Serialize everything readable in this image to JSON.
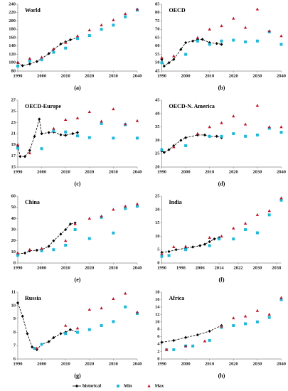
{
  "chart_data": [
    {
      "type": "line",
      "title": "World",
      "label": "(a)",
      "xlim": [
        1990,
        2040
      ],
      "xticks": [
        1990,
        2000,
        2010,
        2020,
        2030,
        2040
      ],
      "ylim": [
        80,
        240
      ],
      "yticks": [
        80,
        100,
        120,
        140,
        160,
        180,
        200,
        220,
        240
      ],
      "series": [
        {
          "color": "#000000",
          "marker": "diamond",
          "dash": true,
          "x": [
            1990,
            1992,
            1995,
            1998,
            2000,
            2003,
            2005,
            2008,
            2010,
            2012,
            2015
          ],
          "values": [
            100,
            93,
            97,
            103,
            110,
            122,
            132,
            145,
            150,
            155,
            160
          ]
        },
        {
          "color": "#1fb8d8",
          "marker": "square",
          "x": [
            1990,
            1995,
            2000,
            2005,
            2010,
            2015,
            2020,
            2025,
            2030,
            2035,
            2040
          ],
          "values": [
            92,
            104,
            107,
            125,
            135,
            158,
            165,
            180,
            190,
            210,
            226
          ]
        },
        {
          "color": "#c0142a",
          "marker": "triangle",
          "x": [
            1990,
            1995,
            2000,
            2005,
            2010,
            2015,
            2020,
            2025,
            2030,
            2035,
            2040
          ],
          "values": [
            101,
            110,
            113,
            133,
            148,
            164,
            178,
            190,
            202,
            217,
            228
          ]
        }
      ]
    },
    {
      "type": "line",
      "title": "OECD",
      "label": "(b)",
      "xlim": [
        1990,
        2040
      ],
      "xticks": [
        1990,
        2000,
        2010,
        2020,
        2030,
        2040
      ],
      "ylim": [
        45,
        85
      ],
      "yticks": [
        45,
        50,
        55,
        60,
        65,
        70,
        75,
        80,
        85
      ],
      "series": [
        {
          "color": "#000000",
          "marker": "diamond",
          "dash": true,
          "x": [
            1990,
            1991,
            1993,
            1995,
            1998,
            2000,
            2003,
            2005,
            2007,
            2010,
            2013,
            2015
          ],
          "values": [
            52,
            48,
            50,
            52,
            58,
            62,
            63,
            64,
            64,
            62,
            61.5,
            61
          ]
        },
        {
          "color": "#1fb8d8",
          "marker": "square",
          "x": [
            1990,
            2000,
            2005,
            2010,
            2015,
            2020,
            2025,
            2030,
            2035,
            2040
          ],
          "values": [
            50,
            55,
            63,
            61,
            63,
            63.5,
            62.5,
            63,
            68.5,
            61
          ]
        },
        {
          "color": "#c0142a",
          "marker": "triangle",
          "x": [
            1990,
            1995,
            2005,
            2010,
            2015,
            2020,
            2025,
            2030,
            2035,
            2040
          ],
          "values": [
            53,
            54,
            65,
            70,
            72,
            76.5,
            71,
            82,
            69,
            66
          ]
        }
      ]
    },
    {
      "type": "line",
      "title": "OECD-Europe",
      "label": "(c)",
      "xlim": [
        1990,
        2040
      ],
      "xticks": [
        1990,
        2000,
        2010,
        2020,
        2030,
        2040
      ],
      "ylim": [
        15,
        27
      ],
      "yticks": [
        15,
        17,
        19,
        21,
        23,
        25,
        27
      ],
      "series": [
        {
          "color": "#000000",
          "marker": "diamond",
          "dash": true,
          "x": [
            1990,
            1991,
            1993,
            1995,
            1997,
            1999,
            2000,
            2003,
            2005,
            2008,
            2010,
            2013,
            2015
          ],
          "values": [
            18.8,
            16.9,
            16.9,
            18,
            20.5,
            23.6,
            21,
            21.2,
            21.3,
            20.8,
            20.7,
            21,
            21.2
          ]
        },
        {
          "color": "#1fb8d8",
          "marker": "square",
          "x": [
            1990,
            2000,
            2005,
            2010,
            2015,
            2020,
            2025,
            2030,
            2035,
            2040
          ],
          "values": [
            18.4,
            18.3,
            21.5,
            21.3,
            20.6,
            20.3,
            22.8,
            20.2,
            22.6,
            20.2
          ]
        },
        {
          "color": "#c0142a",
          "marker": "triangle",
          "x": [
            1990,
            1995,
            2005,
            2010,
            2015,
            2020,
            2025,
            2030,
            2035,
            2040
          ],
          "values": [
            19,
            17.5,
            21.9,
            23.5,
            23.8,
            24.9,
            23.2,
            25.4,
            22.7,
            23.3
          ]
        }
      ]
    },
    {
      "type": "line",
      "title": "OECD-N. America",
      "label": "(d)",
      "xlim": [
        1990,
        2040
      ],
      "xticks": [
        1990,
        2000,
        2010,
        2020,
        2030,
        2040
      ],
      "ylim": [
        20,
        45
      ],
      "yticks": [
        20,
        25,
        30,
        35,
        40,
        45
      ],
      "series": [
        {
          "color": "#000000",
          "marker": "diamond",
          "dash": true,
          "x": [
            1990,
            1991,
            1993,
            1995,
            1998,
            2000,
            2005,
            2008,
            2010,
            2013,
            2015
          ],
          "values": [
            26,
            25.5,
            26.5,
            28,
            30,
            31,
            32,
            32,
            31.5,
            31.5,
            31
          ]
        },
        {
          "color": "#1fb8d8",
          "marker": "square",
          "x": [
            1990,
            2000,
            2010,
            2015,
            2020,
            2025,
            2030,
            2035,
            2040
          ],
          "values": [
            26.5,
            28,
            31.5,
            31.5,
            32.5,
            31.5,
            32,
            34.5,
            33
          ]
        },
        {
          "color": "#c0142a",
          "marker": "triangle",
          "x": [
            1995,
            2005,
            2010,
            2015,
            2020,
            2025,
            2030,
            2035,
            2040
          ],
          "values": [
            27.5,
            32.5,
            35,
            36.5,
            39,
            36,
            43,
            35,
            35
          ]
        }
      ]
    },
    {
      "type": "line",
      "title": "China",
      "label": "(e)",
      "xlim": [
        1990,
        2040
      ],
      "xticks": [
        1990,
        2000,
        2010,
        2020,
        2030,
        2040
      ],
      "ylim": [
        0,
        60
      ],
      "yticks": [
        0,
        10,
        20,
        30,
        40,
        50,
        60
      ],
      "series": [
        {
          "color": "#000000",
          "marker": "diamond",
          "dash": true,
          "x": [
            1990,
            1993,
            1995,
            1998,
            2000,
            2003,
            2005,
            2008,
            2010,
            2012,
            2014
          ],
          "values": [
            8,
            9,
            11,
            11.5,
            12,
            15,
            20,
            26,
            30,
            35,
            36
          ]
        },
        {
          "color": "#1fb8d8",
          "marker": "square",
          "x": [
            1990,
            2000,
            2005,
            2010,
            2014,
            2020,
            2025,
            2030,
            2035,
            2040
          ],
          "values": [
            7,
            11,
            12,
            16,
            30,
            22,
            41,
            27,
            49,
            51
          ]
        },
        {
          "color": "#c0142a",
          "marker": "triangle",
          "x": [
            1990,
            1995,
            2000,
            2010,
            2014,
            2020,
            2025,
            2030,
            2035,
            2040
          ],
          "values": [
            9,
            12,
            13,
            20,
            35,
            40,
            42,
            48,
            51,
            53
          ]
        }
      ]
    },
    {
      "type": "line",
      "title": "India",
      "label": "(f)",
      "xlim": [
        1990,
        2040
      ],
      "xticks": [
        1990,
        1998,
        2006,
        2014,
        2022,
        2030,
        2038
      ],
      "ylim": [
        0,
        25
      ],
      "yticks": [
        0,
        5,
        10,
        15,
        20,
        25
      ],
      "series": [
        {
          "color": "#000000",
          "marker": "diamond",
          "dash": true,
          "x": [
            1990,
            1993,
            1996,
            2000,
            2003,
            2006,
            2008,
            2010,
            2012,
            2014
          ],
          "values": [
            4,
            4.3,
            5,
            5.5,
            6,
            6.5,
            7,
            8,
            9,
            9.5
          ]
        },
        {
          "color": "#1fb8d8",
          "marker": "square",
          "x": [
            1990,
            1993,
            2000,
            2010,
            2014,
            2020,
            2025,
            2030,
            2035,
            2040
          ],
          "values": [
            2.5,
            2.8,
            5,
            6.5,
            9,
            9,
            12.5,
            11.3,
            18,
            23.5
          ]
        },
        {
          "color": "#c0142a",
          "marker": "triangle",
          "x": [
            1990,
            1995,
            2000,
            2010,
            2015,
            2020,
            2025,
            2030,
            2035,
            2040
          ],
          "values": [
            3.5,
            6,
            6.2,
            9.5,
            10,
            13,
            14.8,
            18,
            19.5,
            24.3
          ]
        }
      ]
    },
    {
      "type": "line",
      "title": "Russia",
      "label": "(g)",
      "xlim": [
        1990,
        2040
      ],
      "xticks": [
        1990,
        2000,
        2010,
        2020,
        2030,
        2040
      ],
      "ylim": [
        6,
        11
      ],
      "yticks": [
        6,
        7,
        8,
        9,
        10,
        11
      ],
      "series": [
        {
          "name": "historical",
          "color": "#000000",
          "marker": "diamond",
          "dash": true,
          "x": [
            1990,
            1992,
            1994,
            1996,
            1998,
            2000,
            2003,
            2005,
            2008,
            2010,
            2012,
            2015
          ],
          "values": [
            10.2,
            9.2,
            7.9,
            6.9,
            6.7,
            7.1,
            7.3,
            7.6,
            7.9,
            8,
            8.2,
            8
          ]
        },
        {
          "name": "Min",
          "color": "#1fb8d8",
          "marker": "square",
          "x": [
            1997,
            2000,
            2010,
            2015,
            2020,
            2025,
            2030,
            2035,
            2040
          ],
          "values": [
            6.8,
            7.1,
            7.9,
            8,
            8.2,
            8.5,
            8.8,
            9.9,
            9.4
          ]
        },
        {
          "name": "Max",
          "color": "#c0142a",
          "marker": "triangle",
          "x": [
            1998,
            2010,
            2015,
            2020,
            2025,
            2030,
            2035,
            2040
          ],
          "values": [
            6.8,
            8.5,
            8.3,
            9.7,
            9.8,
            10.5,
            10.9,
            9.5
          ]
        }
      ]
    },
    {
      "type": "line",
      "title": "Africa",
      "label": "(h)",
      "xlim": [
        1990,
        2040
      ],
      "xticks": [
        1990,
        2000,
        2010,
        2020,
        2030,
        2040
      ],
      "ylim": [
        0,
        18
      ],
      "yticks": [
        0,
        2,
        4,
        6,
        8,
        10,
        12,
        14,
        16,
        18
      ],
      "series": [
        {
          "color": "#000000",
          "marker": "diamond",
          "dash": true,
          "x": [
            1990,
            1995,
            2000,
            2005,
            2010,
            2015
          ],
          "values": [
            4.5,
            5,
            5.8,
            6.5,
            7.5,
            9
          ]
        },
        {
          "color": "#1fb8d8",
          "marker": "square",
          "x": [
            1992,
            1995,
            2000,
            2003,
            2010,
            2015,
            2020,
            2025,
            2030,
            2035,
            2040
          ],
          "values": [
            2.5,
            2.5,
            3.5,
            3.5,
            5,
            8.5,
            9,
            9.5,
            10,
            11.2,
            16
          ]
        },
        {
          "color": "#c0142a",
          "marker": "triangle",
          "x": [
            1992,
            2000,
            2008,
            2015,
            2020,
            2025,
            2030,
            2035,
            2040
          ],
          "values": [
            2.5,
            3.5,
            4.8,
            8.8,
            11,
            11.5,
            13,
            12,
            16.5
          ]
        }
      ]
    }
  ]
}
